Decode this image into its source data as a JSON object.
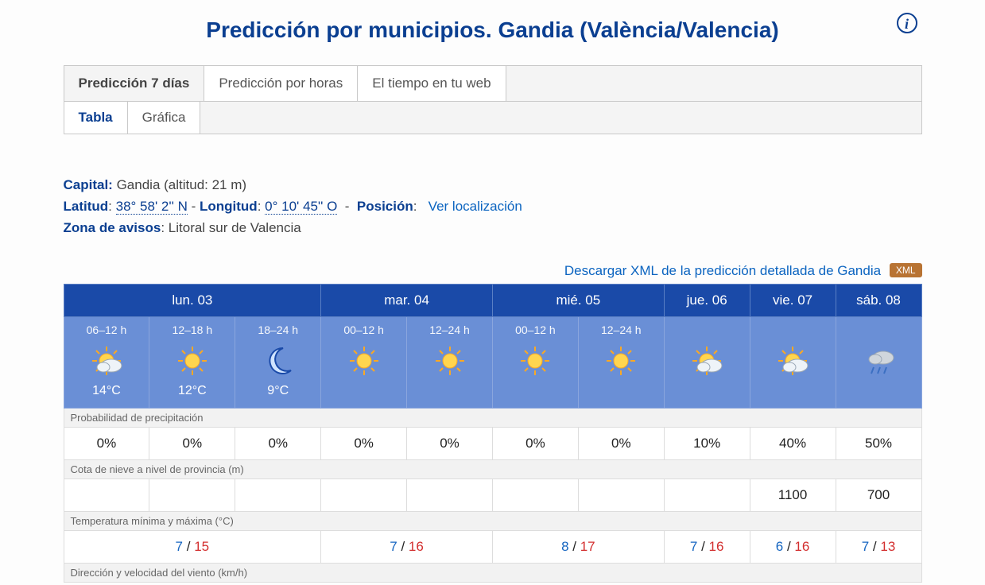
{
  "title": "Predicción por municipios. Gandia (València/Valencia)",
  "tabs": {
    "main": [
      "Predicción 7 días",
      "Predicción por horas",
      "El tiempo en tu web"
    ],
    "active_main": 0,
    "sub": [
      "Tabla",
      "Gráfica"
    ],
    "active_sub": 0
  },
  "meta": {
    "capital_label": "Capital:",
    "capital_value": "Gandia (altitud: 21 m)",
    "lat_label": "Latitud",
    "lat_value": "38° 58' 2'' N",
    "lon_label": "Longitud",
    "lon_value": "0° 10' 45'' O",
    "pos_label": "Posición",
    "pos_link": "Ver localización",
    "zone_label": "Zona de avisos",
    "zone_value": "Litoral sur de Valencia"
  },
  "download": {
    "text": "Descargar XML de la predicción detallada de Gandia",
    "badge": "XML"
  },
  "colors": {
    "header_bg": "#1a4aa8",
    "slot_bg": "#6a8fd6",
    "accent": "#0b3f91",
    "xml_badge": "#b87333",
    "tmin": "#1565c0",
    "tmax": "#d32f2f"
  },
  "days": [
    {
      "label": "lun. 03",
      "span": 3,
      "slots": [
        {
          "range": "06–12 h",
          "icon": "sun-cloud",
          "temp": "14°C"
        },
        {
          "range": "12–18 h",
          "icon": "sun",
          "temp": "12°C"
        },
        {
          "range": "18–24 h",
          "icon": "moon",
          "temp": "9°C"
        }
      ]
    },
    {
      "label": "mar. 04",
      "span": 2,
      "slots": [
        {
          "range": "00–12 h",
          "icon": "sun",
          "temp": ""
        },
        {
          "range": "12–24 h",
          "icon": "sun",
          "temp": ""
        }
      ]
    },
    {
      "label": "mié. 05",
      "span": 2,
      "slots": [
        {
          "range": "00–12 h",
          "icon": "sun",
          "temp": ""
        },
        {
          "range": "12–24 h",
          "icon": "sun",
          "temp": ""
        }
      ]
    },
    {
      "label": "jue. 06",
      "span": 1,
      "slots": [
        {
          "range": "",
          "icon": "sun-cloud",
          "temp": ""
        }
      ]
    },
    {
      "label": "vie. 07",
      "span": 1,
      "slots": [
        {
          "range": "",
          "icon": "sun-cloud",
          "temp": ""
        }
      ]
    },
    {
      "label": "sáb. 08",
      "span": 1,
      "slots": [
        {
          "range": "",
          "icon": "cloud-rain",
          "temp": ""
        }
      ]
    }
  ],
  "sections": {
    "precip_label": "Probabilidad de precipitación",
    "precip": [
      "0%",
      "0%",
      "0%",
      "0%",
      "0%",
      "0%",
      "0%",
      "10%",
      "40%",
      "50%"
    ],
    "snow_label": "Cota de nieve a nivel de provincia (m)",
    "snow": [
      "",
      "",
      "",
      "",
      "",
      "",
      "",
      "",
      "1100",
      "700"
    ],
    "temp_label": "Temperatura mínima y máxima (°C)",
    "temp": [
      {
        "span": 3,
        "min": "7",
        "max": "15"
      },
      {
        "span": 2,
        "min": "7",
        "max": "16"
      },
      {
        "span": 2,
        "min": "8",
        "max": "17"
      },
      {
        "span": 1,
        "min": "7",
        "max": "16"
      },
      {
        "span": 1,
        "min": "6",
        "max": "16"
      },
      {
        "span": 1,
        "min": "7",
        "max": "13"
      }
    ],
    "wind_label": "Dirección y velocidad del viento (km/h)"
  }
}
